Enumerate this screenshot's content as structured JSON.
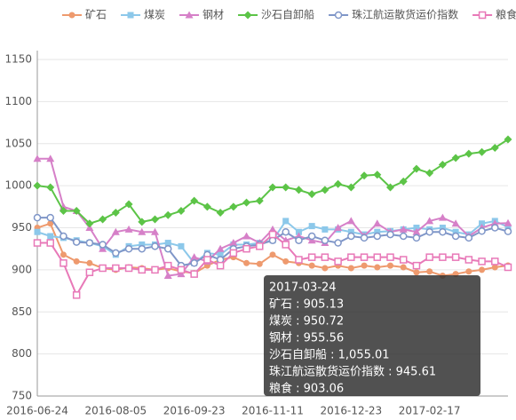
{
  "chart_data": {
    "type": "line",
    "categories": [
      "2016-06-24",
      null,
      null,
      null,
      null,
      null,
      "2016-08-05",
      null,
      null,
      null,
      null,
      null,
      "2016-09-23",
      null,
      null,
      null,
      null,
      null,
      "2016-11-11",
      null,
      null,
      null,
      null,
      null,
      "2016-12-23",
      null,
      null,
      null,
      null,
      null,
      "2017-02-17",
      null,
      null,
      null,
      null,
      null,
      "2017-03-24"
    ],
    "ylim": [
      750,
      1150
    ],
    "yticks": [
      750,
      800,
      850,
      900,
      950,
      1000,
      1050,
      1100,
      1150
    ],
    "grid": true,
    "legend": "top",
    "series": [
      {
        "name": "矿石",
        "color": "#ee9a6e",
        "marker": "circle",
        "values": [
          950,
          955,
          918,
          910,
          908,
          902,
          900,
          903,
          902,
          900,
          902,
          898,
          896,
          905,
          912,
          915,
          908,
          907,
          918,
          910,
          908,
          905,
          902,
          905,
          902,
          905,
          903,
          905,
          903,
          897,
          898,
          893,
          895,
          898,
          900,
          903,
          905.13
        ]
      },
      {
        "name": "煤炭",
        "color": "#8cc8ea",
        "marker": "square",
        "values": [
          945,
          940,
          938,
          935,
          932,
          928,
          918,
          928,
          930,
          930,
          932,
          928,
          908,
          920,
          918,
          930,
          930,
          932,
          935,
          958,
          945,
          952,
          948,
          948,
          945,
          942,
          945,
          946,
          948,
          950,
          948,
          950,
          945,
          942,
          955,
          958,
          950.72
        ]
      },
      {
        "name": "钢材",
        "color": "#d680c8",
        "marker": "triangle",
        "values": [
          1032,
          1032,
          975,
          970,
          950,
          925,
          945,
          948,
          945,
          945,
          893,
          895,
          915,
          910,
          925,
          932,
          940,
          932,
          948,
          935,
          940,
          935,
          932,
          950,
          958,
          940,
          955,
          945,
          948,
          945,
          958,
          962,
          955,
          940,
          950,
          955,
          955.56
        ]
      },
      {
        "name": "沙石自卸船",
        "color": "#5cc447",
        "marker": "diamond",
        "values": [
          1000,
          998,
          970,
          970,
          955,
          960,
          968,
          978,
          957,
          960,
          965,
          970,
          982,
          975,
          968,
          975,
          980,
          982,
          998,
          998,
          995,
          990,
          995,
          1002,
          998,
          1012,
          1013,
          998,
          1005,
          1020,
          1015,
          1025,
          1033,
          1038,
          1040,
          1045,
          1055.01
        ]
      },
      {
        "name": "珠江航运散货运价指数",
        "color": "#7f96c8",
        "marker": "hollow-circle",
        "values": [
          962,
          962,
          940,
          933,
          932,
          930,
          920,
          925,
          925,
          928,
          925,
          905,
          908,
          918,
          912,
          925,
          928,
          930,
          935,
          945,
          935,
          940,
          935,
          932,
          940,
          938,
          940,
          942,
          940,
          938,
          945,
          945,
          940,
          938,
          946,
          950,
          945.61
        ]
      },
      {
        "name": "粮食",
        "color": "#e879b8",
        "marker": "hollow-square",
        "values": [
          932,
          932,
          908,
          870,
          897,
          902,
          902,
          902,
          900,
          900,
          905,
          900,
          895,
          912,
          905,
          920,
          925,
          928,
          942,
          930,
          912,
          915,
          915,
          910,
          915,
          915,
          915,
          915,
          912,
          905,
          915,
          915,
          915,
          912,
          910,
          910,
          903.06
        ]
      }
    ],
    "tooltip": {
      "lines": [
        "矿石 : 905.13",
        "煤炭 : 950.72",
        "钢材 : 955.56",
        "沙石自卸船 : 1,055.01",
        "珠江航运散货运价指数 : 945.61",
        "粮食 : 903.06"
      ]
    }
  }
}
